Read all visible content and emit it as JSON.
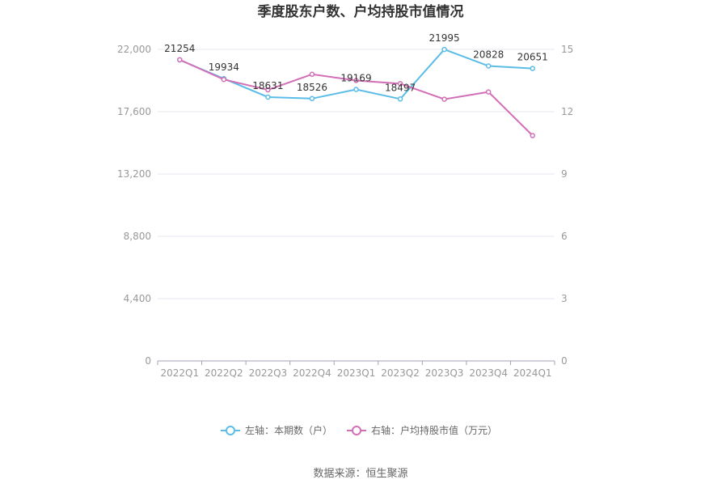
{
  "chart_data": {
    "type": "line",
    "title": "季度股东户数、户均持股市值情况",
    "categories": [
      "2022Q1",
      "2022Q2",
      "2022Q3",
      "2022Q4",
      "2023Q1",
      "2023Q2",
      "2023Q3",
      "2023Q4",
      "2024Q1"
    ],
    "left_axis": {
      "ticks": [
        "0",
        "4,400",
        "8,800",
        "13,200",
        "17,600",
        "22,000"
      ],
      "ylim": [
        0,
        22000
      ]
    },
    "right_axis": {
      "ticks": [
        "0",
        "3",
        "6",
        "9",
        "12",
        "15"
      ],
      "ylim": [
        0,
        15
      ]
    },
    "series": [
      {
        "name": "左轴：本期数（户）",
        "axis": "left",
        "color": "#5bbce8",
        "values": [
          21254,
          19934,
          18631,
          18526,
          19169,
          18497,
          21995,
          20828,
          20651
        ],
        "labels": [
          "21254",
          "19934",
          "18631",
          "18526",
          "19169",
          "18497",
          "21995",
          "20828",
          "20651"
        ]
      },
      {
        "name": "右轴：户均持股市值（万元）",
        "axis": "right",
        "color": "#d36fb6",
        "values": [
          14.5,
          13.55,
          13.05,
          13.8,
          13.5,
          13.35,
          12.6,
          12.95,
          10.85
        ]
      }
    ],
    "grid": true,
    "legend_position": "bottom"
  },
  "footer": {
    "source": "数据来源：恒生聚源"
  }
}
